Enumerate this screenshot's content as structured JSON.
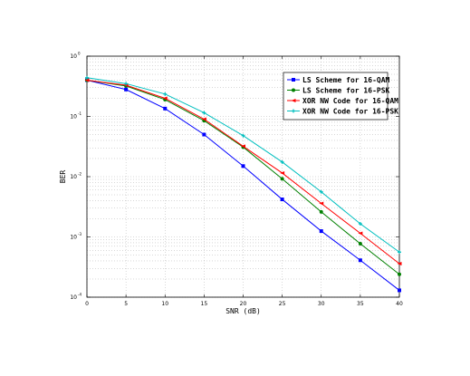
{
  "chart_data": {
    "type": "line",
    "title": "",
    "xlabel": "SNR (dB)",
    "ylabel": "BER",
    "xlim": [
      0,
      40
    ],
    "ylim": [
      0.0001,
      1
    ],
    "yscale": "log",
    "xticks": [
      "0",
      "5",
      "10",
      "15",
      "20",
      "25",
      "30",
      "35",
      "40"
    ],
    "yticks": [
      {
        "base": "10",
        "exp": "0"
      },
      {
        "base": "10",
        "exp": "-1"
      },
      {
        "base": "10",
        "exp": "-2"
      },
      {
        "base": "10",
        "exp": "-3"
      },
      {
        "base": "10",
        "exp": "-4"
      }
    ],
    "grid": true,
    "legend_position": "top-right",
    "x": [
      0,
      5,
      10,
      15,
      20,
      25,
      30,
      35,
      40
    ],
    "series": [
      {
        "name": "LS Scheme for 16-QAM",
        "color": "#0000ff",
        "marker": "square",
        "values": [
          0.4,
          0.28,
          0.135,
          0.05,
          0.015,
          0.0042,
          0.00125,
          0.00041,
          0.00013
        ]
      },
      {
        "name": "LS Scheme for 16-PSK",
        "color": "#008000",
        "marker": "circle",
        "values": [
          0.4,
          0.32,
          0.19,
          0.085,
          0.031,
          0.0092,
          0.0026,
          0.00077,
          0.00024
        ]
      },
      {
        "name": "XOR NW Code for 16-QAM",
        "color": "#ff0000",
        "marker": "triangle",
        "values": [
          0.4,
          0.33,
          0.2,
          0.09,
          0.032,
          0.0115,
          0.0036,
          0.00115,
          0.00036
        ]
      },
      {
        "name": "XOR NW Code for 16-PSK",
        "color": "#00bfbf",
        "marker": "cross",
        "values": [
          0.44,
          0.35,
          0.235,
          0.115,
          0.048,
          0.0175,
          0.0056,
          0.00165,
          0.00056
        ]
      }
    ]
  }
}
